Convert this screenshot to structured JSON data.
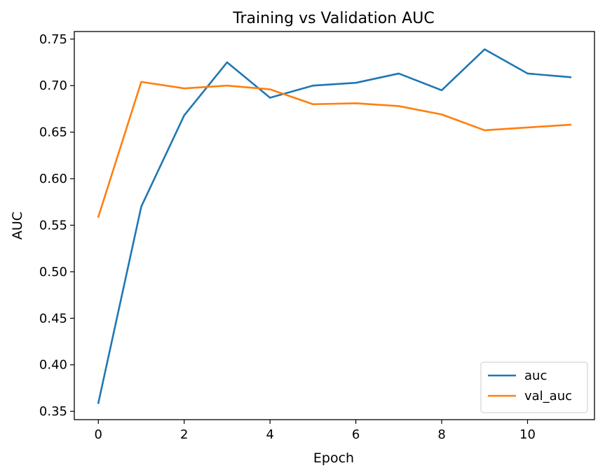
{
  "chart_data": {
    "type": "line",
    "title": "Training vs Validation AUC",
    "xlabel": "Epoch",
    "ylabel": "AUC",
    "x": [
      0,
      1,
      2,
      3,
      4,
      5,
      6,
      7,
      8,
      9,
      10,
      11
    ],
    "xlim": [
      -0.56,
      11.56
    ],
    "ylim": [
      0.3411,
      0.7581
    ],
    "xticks": [
      0,
      2,
      4,
      6,
      8,
      10
    ],
    "yticks": [
      0.35,
      0.4,
      0.45,
      0.5,
      0.55,
      0.6,
      0.65,
      0.7,
      0.75
    ],
    "xtick_labels": [
      "0",
      "2",
      "4",
      "6",
      "8",
      "10"
    ],
    "ytick_labels": [
      "0.35",
      "0.40",
      "0.45",
      "0.50",
      "0.55",
      "0.60",
      "0.65",
      "0.70",
      "0.75"
    ],
    "grid": false,
    "legend_position": "lower-right",
    "series": [
      {
        "name": "auc",
        "color": "#1f77b4",
        "values": [
          0.359,
          0.57,
          0.668,
          0.725,
          0.687,
          0.7,
          0.703,
          0.713,
          0.695,
          0.739,
          0.713,
          0.709
        ]
      },
      {
        "name": "val_auc",
        "color": "#ff7f0e",
        "values": [
          0.559,
          0.704,
          0.697,
          0.7,
          0.696,
          0.68,
          0.681,
          0.678,
          0.669,
          0.652,
          0.655,
          0.658
        ]
      }
    ]
  }
}
